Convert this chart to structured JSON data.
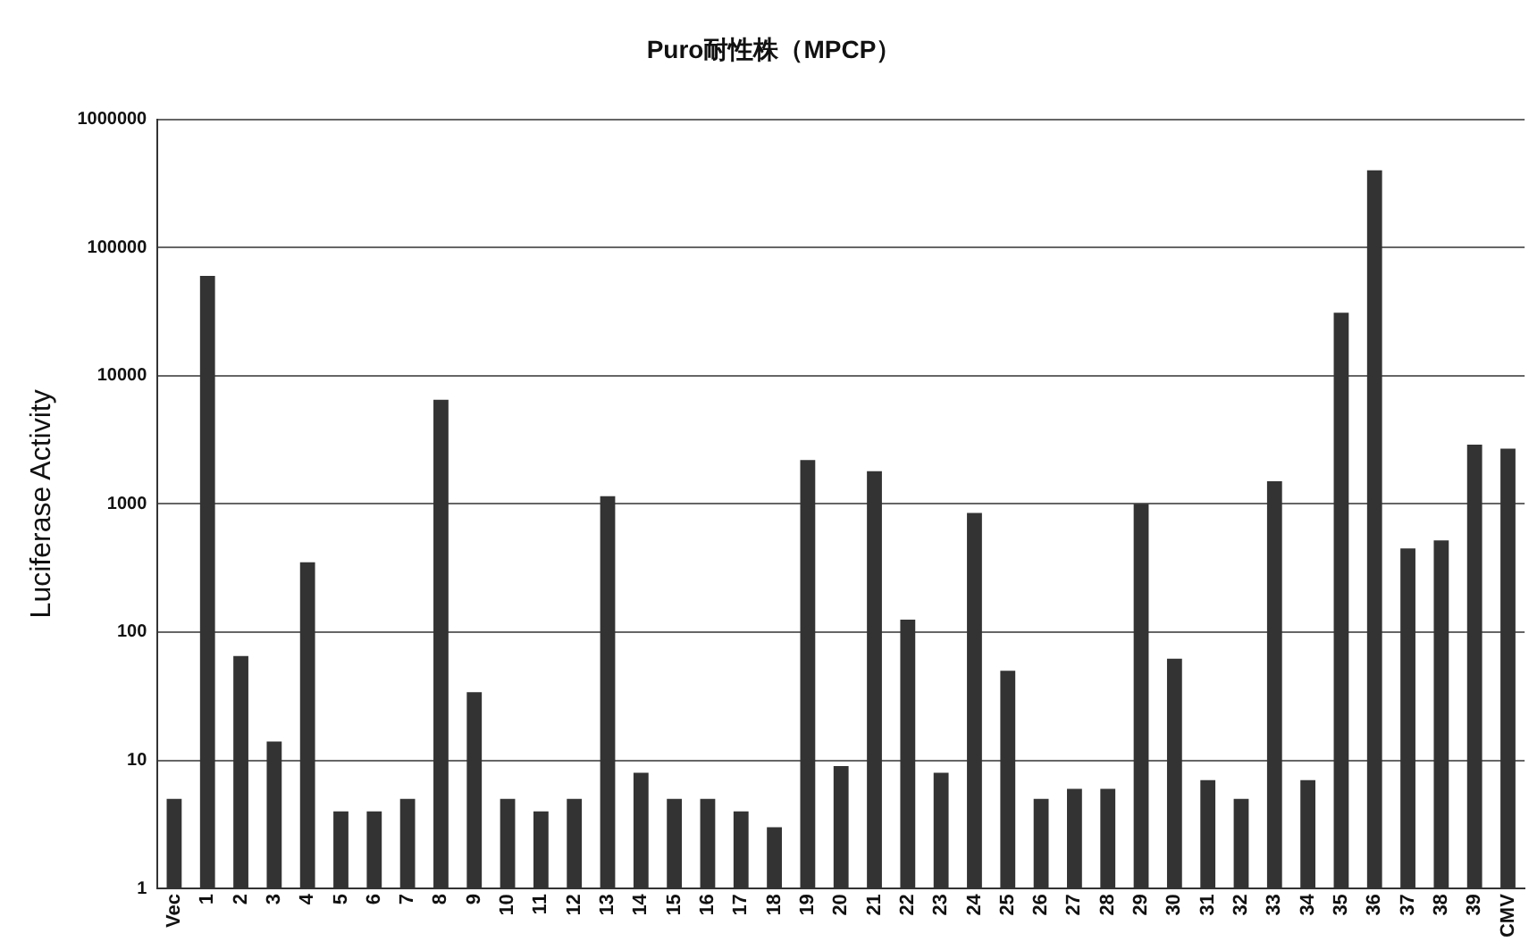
{
  "chart_data": {
    "type": "bar",
    "title": "Puro耐性株（MPCP）",
    "ylabel": "Luciferase Activity",
    "categories": [
      "Vec",
      "1",
      "2",
      "3",
      "4",
      "5",
      "6",
      "7",
      "8",
      "9",
      "10",
      "11",
      "12",
      "13",
      "14",
      "15",
      "16",
      "17",
      "18",
      "19",
      "20",
      "21",
      "22",
      "23",
      "24",
      "25",
      "26",
      "27",
      "28",
      "29",
      "30",
      "31",
      "32",
      "33",
      "34",
      "35",
      "36",
      "37",
      "38",
      "39",
      "CMV"
    ],
    "values": [
      5,
      60000,
      65,
      14,
      350,
      4,
      4,
      5,
      6500,
      34,
      5,
      4,
      5,
      1150,
      8,
      5,
      5,
      4,
      3,
      2200,
      9,
      1800,
      125,
      8,
      850,
      50,
      5,
      6,
      6,
      1000,
      62,
      7,
      5,
      1500,
      7,
      31000,
      400000,
      450,
      520,
      2900,
      2700
    ],
    "color": "#333333",
    "log": "y",
    "ylim": [
      1,
      1000000
    ],
    "yticks": [
      1,
      10,
      100,
      1000,
      10000,
      100000,
      1000000
    ],
    "grid": "y"
  }
}
